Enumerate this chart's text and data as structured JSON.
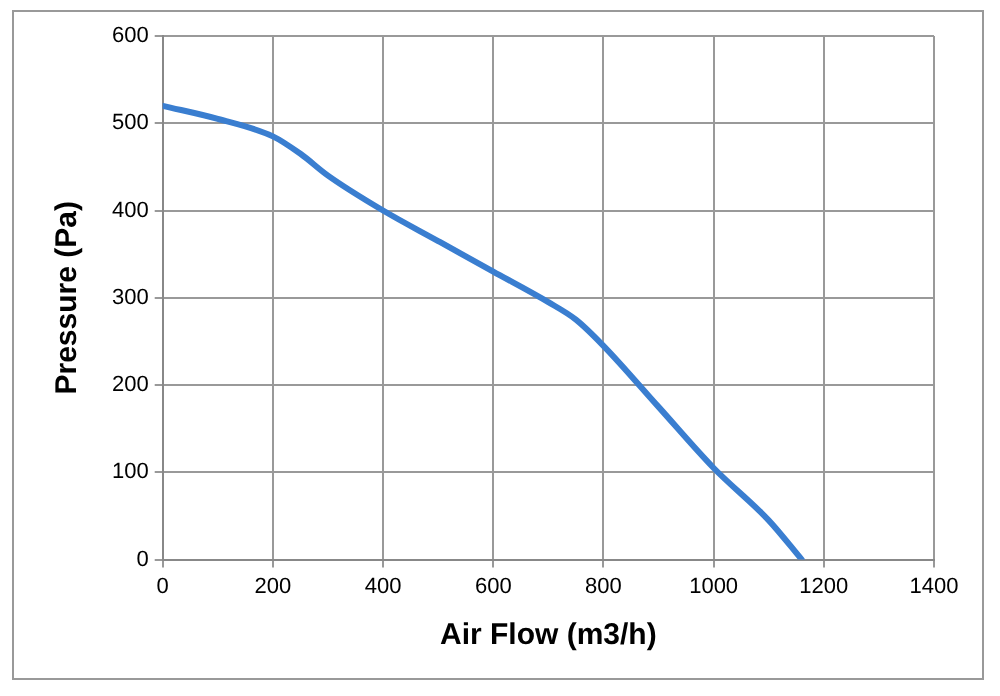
{
  "chart_data": {
    "type": "line",
    "xlabel": "Air Flow (m3/h)",
    "ylabel": "Pressure (Pa)",
    "x": [
      0,
      100,
      200,
      250,
      300,
      400,
      500,
      600,
      700,
      750,
      800,
      900,
      1000,
      1100,
      1160
    ],
    "series": [
      {
        "color": "#3a7ed0",
        "values": [
          520,
          505,
          485,
          465,
          440,
          400,
          365,
          330,
          295,
          275,
          245,
          175,
          105,
          45,
          0
        ]
      }
    ],
    "xlim": [
      0,
      1400
    ],
    "xticks": [
      0,
      200,
      400,
      600,
      800,
      1000,
      1200,
      1400
    ],
    "ylim": [
      0,
      600
    ],
    "yticks": [
      0,
      100,
      200,
      300,
      400,
      500,
      600
    ],
    "grid": true,
    "legend": false,
    "marker": "none",
    "line_style": "solid"
  }
}
